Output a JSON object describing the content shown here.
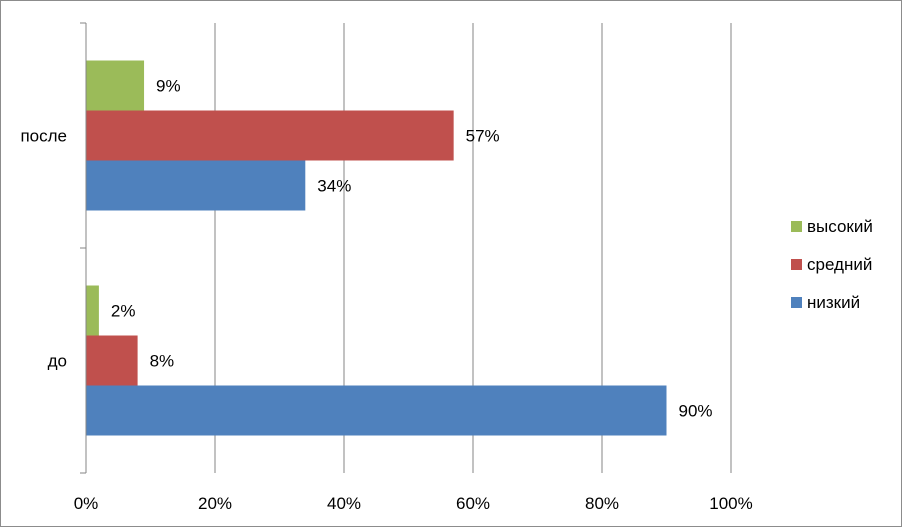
{
  "chart_data": {
    "type": "bar",
    "orientation": "horizontal",
    "categories": [
      "до",
      "после"
    ],
    "series": [
      {
        "name": "низкий",
        "values": [
          90,
          34
        ],
        "color": "#4F81BD"
      },
      {
        "name": "средний",
        "values": [
          8,
          57
        ],
        "color": "#C0504D"
      },
      {
        "name": "высокий",
        "values": [
          2,
          9
        ],
        "color": "#9BBB59"
      }
    ],
    "value_suffix": "%",
    "xlim": [
      0,
      100
    ],
    "x_ticks": [
      "0%",
      "20%",
      "40%",
      "60%",
      "80%",
      "100%"
    ],
    "grid": true,
    "legend_position": "right",
    "legend_order": [
      "высокий",
      "средний",
      "низкий"
    ],
    "title": "",
    "xlabel": "",
    "ylabel": ""
  }
}
